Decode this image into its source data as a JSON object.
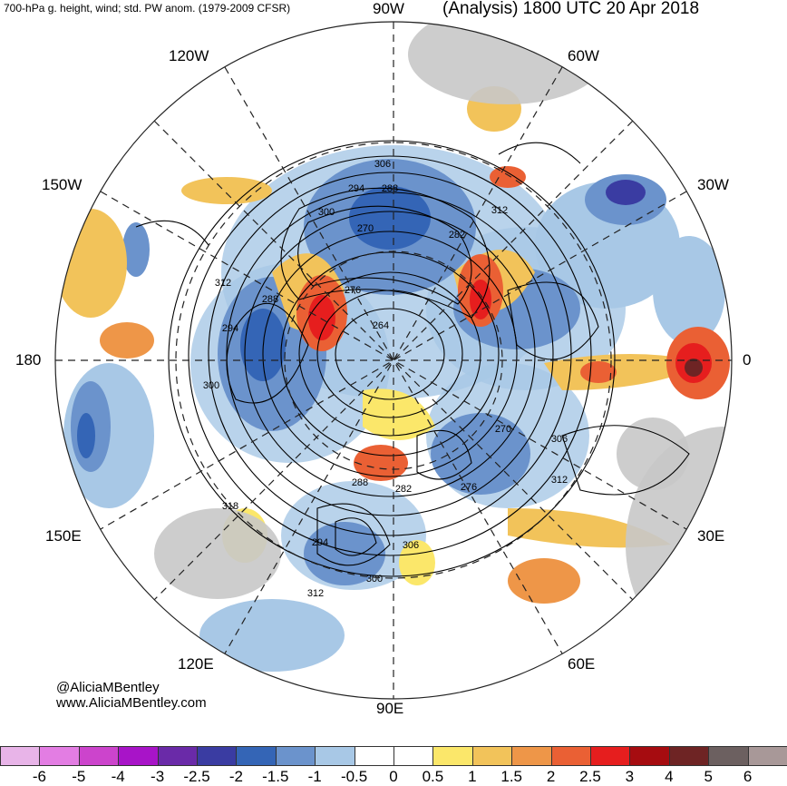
{
  "header": {
    "subtitle": "700-hPa g. height, wind; std. PW anom. (1979-2009 CFSR)",
    "title": "(Analysis) 1800 UTC 20 Apr 2018"
  },
  "longitude_labels": {
    "top": "90W",
    "upper_left": "120W",
    "upper_right": "60W",
    "mid_upper_left": "150W",
    "mid_upper_right": "30W",
    "left": "180",
    "right": "0",
    "mid_lower_left": "150E",
    "mid_lower_right": "30E",
    "lower_left": "120E",
    "lower_right": "60E",
    "bottom": "90E"
  },
  "height_contour_labels": [
    "306",
    "294",
    "288",
    "300",
    "270",
    "282",
    "312",
    "276",
    "264",
    "288",
    "294",
    "312",
    "300",
    "270",
    "306",
    "312",
    "276",
    "282",
    "288",
    "318",
    "294",
    "306",
    "300",
    "312"
  ],
  "credits": {
    "handle": "@AliciaMBentley",
    "website": "www.AliciaMBentley.com"
  },
  "colorbar": {
    "ticks": [
      "-6",
      "-5",
      "-4",
      "-3",
      "-2.5",
      "-2",
      "-1.5",
      "-1",
      "-0.5",
      "0",
      "0.5",
      "1",
      "1.5",
      "2",
      "2.5",
      "3",
      "4",
      "5",
      "6"
    ],
    "colors": [
      "#e8b4e8",
      "#e37de3",
      "#cc44cc",
      "#a814c8",
      "#6a2aa8",
      "#3a3ca2",
      "#3465b6",
      "#6b93cc",
      "#a8c8e6",
      "#ffffff",
      "#ffffff",
      "#fbe76a",
      "#f2c35a",
      "#ee9648",
      "#ea6034",
      "#e61e1e",
      "#a60c10",
      "#6e2424",
      "#6c6060",
      "#a89898"
    ]
  },
  "colors": {
    "background": "#ffffff",
    "land_gray": "#c8c8c8",
    "contour": "#000000"
  }
}
